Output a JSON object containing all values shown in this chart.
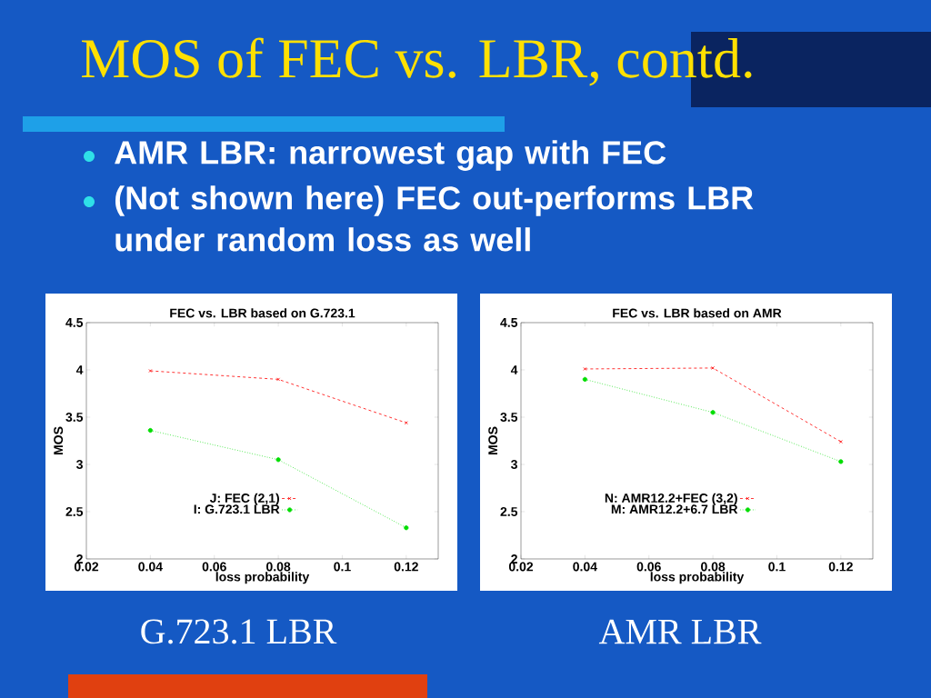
{
  "chart_data": [
    {
      "type": "line",
      "title": "FEC vs. LBR based on G.723.1",
      "xlabel": "loss probability",
      "ylabel": "MOS",
      "x": [
        0.04,
        0.08,
        0.12
      ],
      "series": [
        {
          "name": "J: FEC (2,1)",
          "color": "#ff0000",
          "marker": "cross",
          "line_style": "dashed",
          "values": [
            3.99,
            3.9,
            3.44
          ]
        },
        {
          "name": "I: G.723.1 LBR",
          "color": "#00dd00",
          "marker": "circle",
          "line_style": "dotted",
          "values": [
            3.36,
            3.05,
            2.33
          ]
        }
      ],
      "xlim": [
        0.02,
        0.13
      ],
      "ylim": [
        2,
        4.5
      ],
      "xticks": [
        0.02,
        0.04,
        0.06,
        0.08,
        0.1,
        0.12
      ],
      "yticks": [
        2,
        2.5,
        3,
        3.5,
        4,
        4.5
      ],
      "legend": "bottom",
      "annotations": [
        "MOS of FEC vs. LBR, contd.",
        "AMR LBR: narrowest gap with FEC",
        "(Not shown here) FEC out-performs LBR under random loss as well",
        "G.723.1 LBR"
      ]
    },
    {
      "type": "line",
      "title": "FEC vs. LBR based on AMR",
      "xlabel": "loss probability",
      "ylabel": "MOS",
      "x": [
        0.04,
        0.08,
        0.12
      ],
      "series": [
        {
          "name": "N: AMR12.2+FEC (3,2)",
          "color": "#ff0000",
          "marker": "cross",
          "line_style": "dashed",
          "values": [
            4.01,
            4.02,
            3.24
          ]
        },
        {
          "name": "M: AMR12.2+6.7 LBR",
          "color": "#00dd00",
          "marker": "circle",
          "line_style": "dotted",
          "values": [
            3.9,
            3.55,
            3.03
          ]
        }
      ],
      "xlim": [
        0.02,
        0.13
      ],
      "ylim": [
        2,
        4.5
      ],
      "xticks": [
        0.02,
        0.04,
        0.06,
        0.08,
        0.1,
        0.12
      ],
      "yticks": [
        2,
        2.5,
        3,
        3.5,
        4,
        4.5
      ],
      "legend": "bottom",
      "annotations": [
        "AMR LBR"
      ]
    }
  ]
}
